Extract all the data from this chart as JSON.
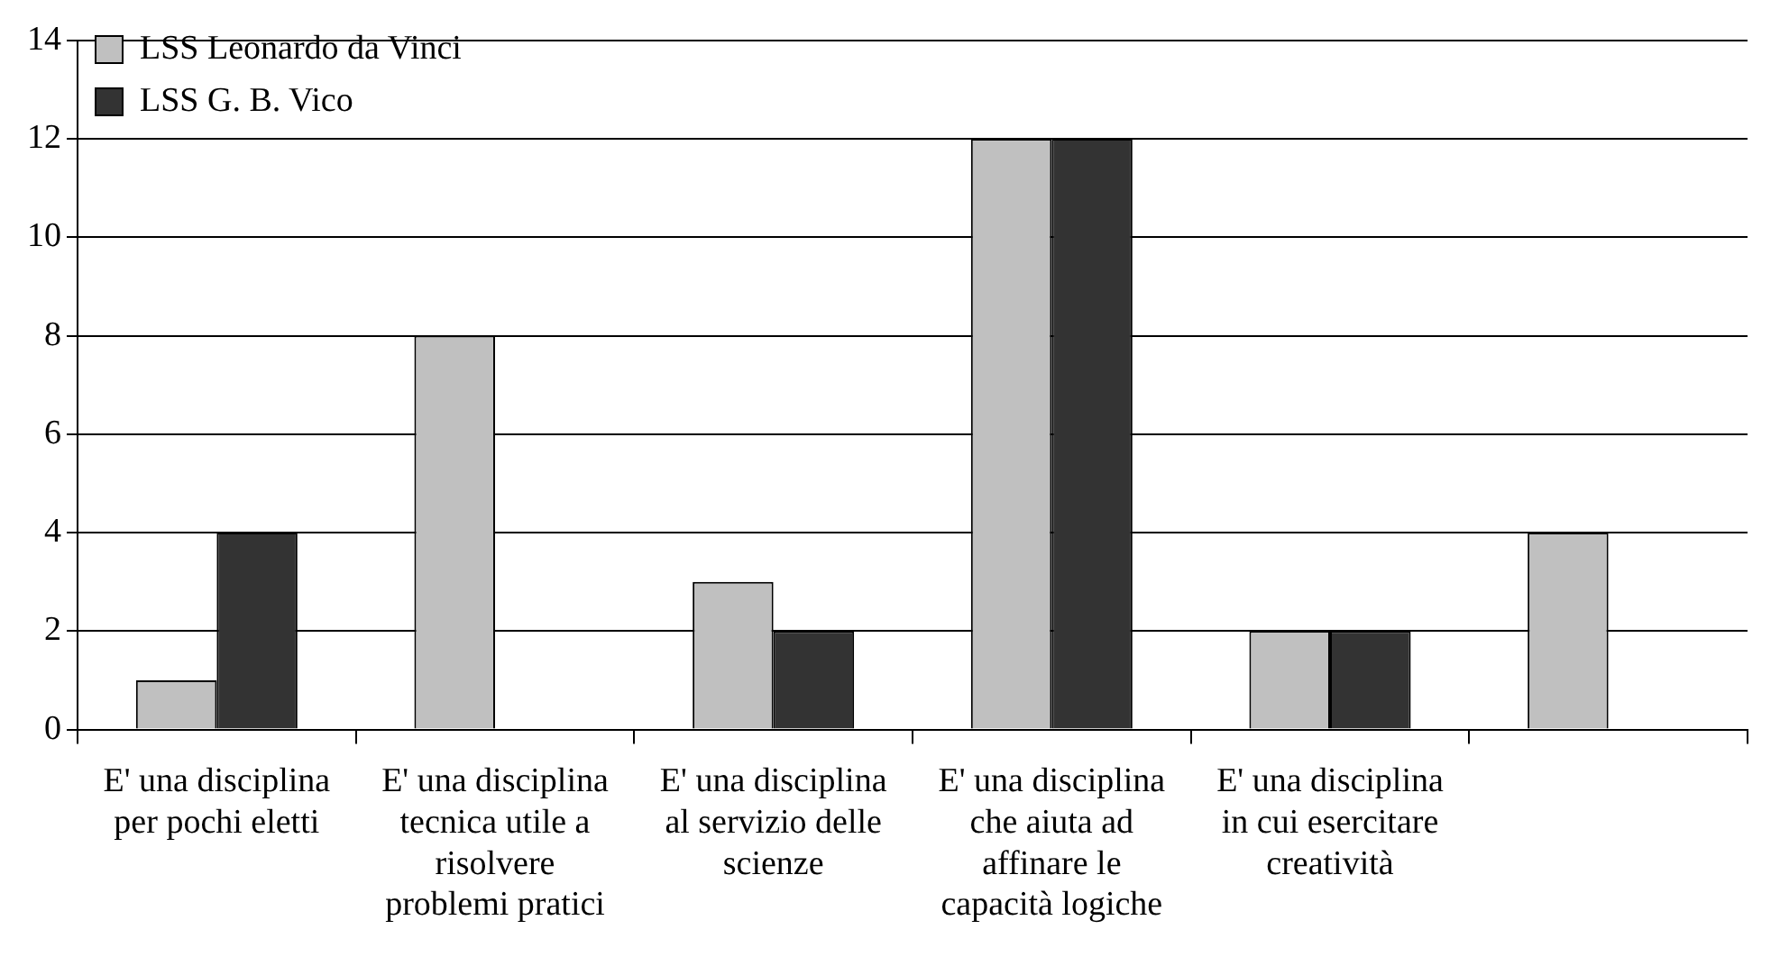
{
  "chart_data": {
    "type": "bar",
    "categories": [
      "E' una disciplina per pochi eletti",
      "E' una disciplina tecnica utile a risolvere problemi pratici",
      "E' una disciplina al servizio delle scienze",
      "E' una disciplina che aiuta ad affinare le capacità logiche",
      "E' una disciplina in cui esercitare creatività",
      null
    ],
    "series": [
      {
        "name": "LSS Leonardo da Vinci",
        "color": "#c0c0c0",
        "values": [
          1,
          8,
          3,
          12,
          2,
          4
        ]
      },
      {
        "name": "LSS G. B. Vico",
        "color": "#333333",
        "values": [
          4,
          0,
          2,
          12,
          2,
          0
        ]
      }
    ],
    "ylim": [
      0,
      14
    ],
    "yticks": [
      0,
      2,
      4,
      6,
      8,
      10,
      12,
      14
    ],
    "grid": "y",
    "legend": "top left"
  }
}
